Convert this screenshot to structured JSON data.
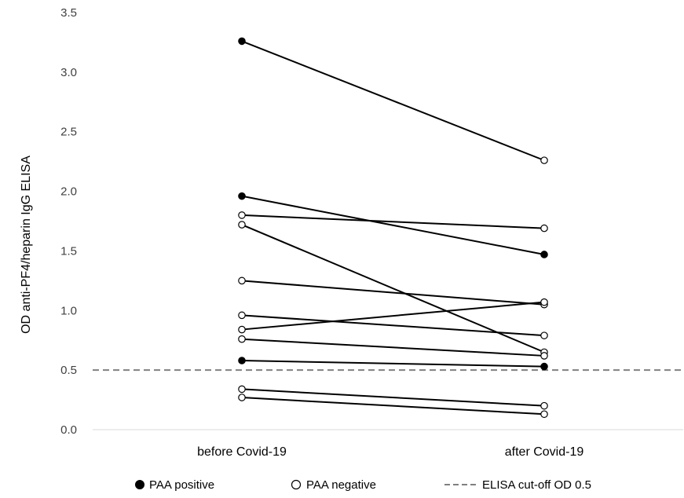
{
  "chart_data": {
    "type": "line",
    "categories": [
      "before Covid-19",
      "after Covid-19"
    ],
    "ylabel": "OD anti-PF4/heparin IgG ELISA",
    "ylim": [
      0,
      3.5
    ],
    "yticks": [
      "0.0",
      "0.5",
      "1.0",
      "1.5",
      "2.0",
      "2.5",
      "3.0",
      "3.5"
    ],
    "pairs": [
      {
        "before": 3.26,
        "after": 2.26,
        "before_status": "positive",
        "after_status": "negative"
      },
      {
        "before": 1.96,
        "after": 1.47,
        "before_status": "positive",
        "after_status": "positive"
      },
      {
        "before": 1.8,
        "after": 1.69,
        "before_status": "negative",
        "after_status": "negative"
      },
      {
        "before": 1.72,
        "after": 0.65,
        "before_status": "negative",
        "after_status": "negative"
      },
      {
        "before": 1.25,
        "after": 1.05,
        "before_status": "negative",
        "after_status": "negative"
      },
      {
        "before": 0.96,
        "after": 0.79,
        "before_status": "negative",
        "after_status": "negative"
      },
      {
        "before": 0.84,
        "after": 1.07,
        "before_status": "negative",
        "after_status": "negative"
      },
      {
        "before": 0.76,
        "after": 0.62,
        "before_status": "negative",
        "after_status": "negative"
      },
      {
        "before": 0.58,
        "after": 0.53,
        "before_status": "positive",
        "after_status": "positive"
      },
      {
        "before": 0.34,
        "after": 0.2,
        "before_status": "negative",
        "after_status": "negative"
      },
      {
        "before": 0.27,
        "after": 0.13,
        "before_status": "negative",
        "after_status": "negative"
      }
    ],
    "cutoff": 0.5,
    "grid": false,
    "legend_position": "bottom",
    "legend": {
      "positive": "PAA positive",
      "negative": "PAA negative",
      "cutoff": "ELISA cut-off OD 0.5"
    },
    "colors": {
      "line": "#000000",
      "cutoff": "#808080",
      "axis": "#d9d9d9",
      "negative_fill": "#ffffff"
    }
  }
}
